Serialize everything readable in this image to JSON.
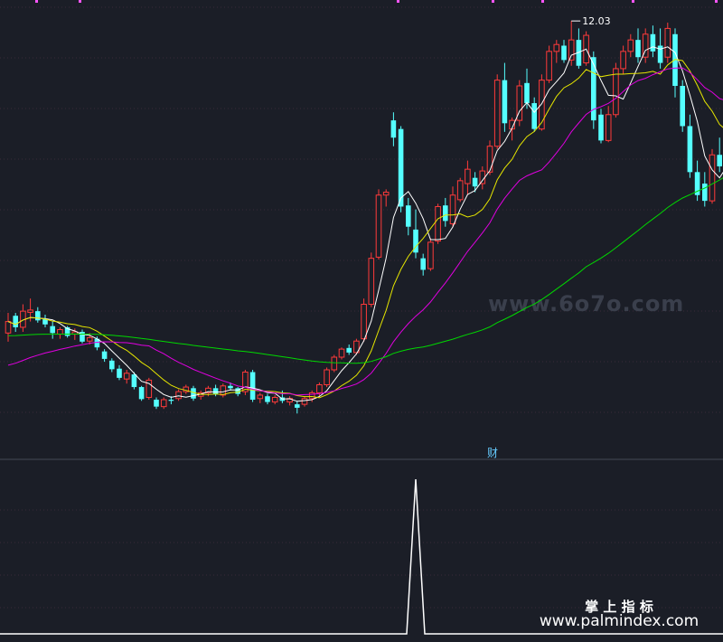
{
  "chart_data": [
    {
      "type": "candlestick",
      "panel": "price",
      "max_label": "12.03",
      "grid": true,
      "candles": [
        [
          6.6,
          6.95,
          6.45,
          6.8
        ],
        [
          6.9,
          6.95,
          6.62,
          6.7
        ],
        [
          6.7,
          7.1,
          6.62,
          6.98
        ],
        [
          6.96,
          7.2,
          6.8,
          7.0
        ],
        [
          6.98,
          7.05,
          6.78,
          6.82
        ],
        [
          6.84,
          6.92,
          6.7,
          6.75
        ],
        [
          6.72,
          6.8,
          6.5,
          6.6
        ],
        [
          6.58,
          6.7,
          6.5,
          6.66
        ],
        [
          6.7,
          6.72,
          6.52,
          6.55
        ],
        [
          6.58,
          6.68,
          6.48,
          6.62
        ],
        [
          6.62,
          6.66,
          6.42,
          6.45
        ],
        [
          6.46,
          6.6,
          6.4,
          6.52
        ],
        [
          6.5,
          6.54,
          6.3,
          6.35
        ],
        [
          6.28,
          6.32,
          6.1,
          6.15
        ],
        [
          6.12,
          6.16,
          5.92,
          5.97
        ],
        [
          5.98,
          6.04,
          5.78,
          5.82
        ],
        [
          5.8,
          5.96,
          5.72,
          5.9
        ],
        [
          5.88,
          5.92,
          5.62,
          5.66
        ],
        [
          5.66,
          5.68,
          5.42,
          5.45
        ],
        [
          5.48,
          5.82,
          5.44,
          5.78
        ],
        [
          5.44,
          5.48,
          5.28,
          5.32
        ],
        [
          5.32,
          5.48,
          5.28,
          5.44
        ],
        [
          5.44,
          5.5,
          5.36,
          5.42
        ],
        [
          5.46,
          5.62,
          5.42,
          5.58
        ],
        [
          5.58,
          5.7,
          5.54,
          5.66
        ],
        [
          5.64,
          5.68,
          5.42,
          5.46
        ],
        [
          5.5,
          5.6,
          5.44,
          5.56
        ],
        [
          5.56,
          5.68,
          5.5,
          5.64
        ],
        [
          5.64,
          5.7,
          5.5,
          5.54
        ],
        [
          5.52,
          5.72,
          5.48,
          5.68
        ],
        [
          5.68,
          5.74,
          5.6,
          5.64
        ],
        [
          5.64,
          5.66,
          5.5,
          5.54
        ],
        [
          5.58,
          5.96,
          5.52,
          5.92
        ],
        [
          5.92,
          5.96,
          5.4,
          5.44
        ],
        [
          5.46,
          5.56,
          5.38,
          5.52
        ],
        [
          5.5,
          5.54,
          5.36,
          5.4
        ],
        [
          5.4,
          5.52,
          5.36,
          5.48
        ],
        [
          5.48,
          5.6,
          5.38,
          5.42
        ],
        [
          5.4,
          5.5,
          5.34,
          5.46
        ],
        [
          5.36,
          5.42,
          5.2,
          5.3
        ],
        [
          5.36,
          5.5,
          5.32,
          5.46
        ],
        [
          5.46,
          5.6,
          5.4,
          5.56
        ],
        [
          5.56,
          5.74,
          5.5,
          5.7
        ],
        [
          5.7,
          6.0,
          5.66,
          5.96
        ],
        [
          5.96,
          6.22,
          5.92,
          6.18
        ],
        [
          6.18,
          6.35,
          6.14,
          6.32
        ],
        [
          6.34,
          6.4,
          6.22,
          6.26
        ],
        [
          6.26,
          6.5,
          6.22,
          6.46
        ],
        [
          6.5,
          7.2,
          6.45,
          7.1
        ],
        [
          7.1,
          8.0,
          7.05,
          7.9
        ],
        [
          7.92,
          9.1,
          7.88,
          9.0
        ],
        [
          9.0,
          9.1,
          8.8,
          9.05
        ],
        [
          10.3,
          10.44,
          9.85,
          10.0
        ],
        [
          10.15,
          10.2,
          8.7,
          8.8
        ],
        [
          8.82,
          8.95,
          8.3,
          8.45
        ],
        [
          8.4,
          8.75,
          7.9,
          8.0
        ],
        [
          7.9,
          7.98,
          7.6,
          7.7
        ],
        [
          7.72,
          8.25,
          7.68,
          8.18
        ],
        [
          8.2,
          8.85,
          8.15,
          8.8
        ],
        [
          8.82,
          8.95,
          8.45,
          8.55
        ],
        [
          8.5,
          9.15,
          8.45,
          9.0
        ],
        [
          8.92,
          9.3,
          8.88,
          9.25
        ],
        [
          9.2,
          9.6,
          9.0,
          9.45
        ],
        [
          9.3,
          9.4,
          9.05,
          9.15
        ],
        [
          9.2,
          9.5,
          9.1,
          9.42
        ],
        [
          9.4,
          9.95,
          9.35,
          9.85
        ],
        [
          9.85,
          11.1,
          9.8,
          11.0
        ],
        [
          11.0,
          11.3,
          10.1,
          10.25
        ],
        [
          10.15,
          10.35,
          9.95,
          10.3
        ],
        [
          10.3,
          11.0,
          10.2,
          10.9
        ],
        [
          10.95,
          11.2,
          10.5,
          10.6
        ],
        [
          10.6,
          10.7,
          10.1,
          10.15
        ],
        [
          10.15,
          11.1,
          10.12,
          11.0
        ],
        [
          11.0,
          11.6,
          10.95,
          11.5
        ],
        [
          11.5,
          11.7,
          11.3,
          11.62
        ],
        [
          11.6,
          11.7,
          11.3,
          11.35
        ],
        [
          11.35,
          12.03,
          11.25,
          11.7
        ],
        [
          11.7,
          11.9,
          11.2,
          11.25
        ],
        [
          11.3,
          11.85,
          11.25,
          11.78
        ],
        [
          11.4,
          11.5,
          10.15,
          10.3
        ],
        [
          10.4,
          10.5,
          9.9,
          9.95
        ],
        [
          9.95,
          10.55,
          9.92,
          10.4
        ],
        [
          10.4,
          11.3,
          10.35,
          11.2
        ],
        [
          11.2,
          11.6,
          11.1,
          11.5
        ],
        [
          11.5,
          11.8,
          11.4,
          11.7
        ],
        [
          11.7,
          11.9,
          11.3,
          11.4
        ],
        [
          11.4,
          11.9,
          11.3,
          11.8
        ],
        [
          11.8,
          11.95,
          11.4,
          11.5
        ],
        [
          11.6,
          11.9,
          11.2,
          11.3
        ],
        [
          11.4,
          12.0,
          11.3,
          11.9
        ],
        [
          11.8,
          11.9,
          10.7,
          10.9
        ],
        [
          10.9,
          11.0,
          10.1,
          10.2
        ],
        [
          10.2,
          10.4,
          9.3,
          9.4
        ],
        [
          9.4,
          9.6,
          8.9,
          9.0
        ],
        [
          9.2,
          9.4,
          8.8,
          8.9
        ],
        [
          8.9,
          9.8,
          8.85,
          9.7
        ],
        [
          9.7,
          10.0,
          9.4,
          9.5
        ],
        [
          9.5,
          10.5,
          9.3,
          10.4
        ],
        [
          10.4,
          11.0,
          10.3,
          10.9
        ],
        [
          10.9,
          11.4,
          10.8,
          11.3
        ],
        [
          11.3,
          12.0,
          11.2,
          11.9
        ],
        [
          11.8,
          11.9,
          10.8,
          10.9
        ],
        [
          10.9,
          11.0,
          10.5,
          10.6
        ],
        [
          10.4,
          10.6,
          10.4,
          10.5
        ],
        [
          10.5,
          10.7,
          9.75,
          9.9
        ],
        [
          9.4,
          9.8,
          8.9,
          9.6
        ],
        [
          9.6,
          9.7,
          9.3,
          9.5
        ]
      ],
      "moving_averages": [
        {
          "period": 5,
          "color": "#ffffff"
        },
        {
          "period": 10,
          "color": "#e6e600"
        },
        {
          "period": 20,
          "color": "#e000e0"
        },
        {
          "period": 60,
          "color": "#00d800"
        }
      ],
      "moving_average_start_values": {
        "60": 6.55,
        "20": 6.0
      },
      "candle_colors": {
        "up": "#ff3a3a",
        "down": "#55ffff"
      },
      "ylim": [
        5.0,
        12.3
      ]
    },
    {
      "type": "line",
      "panel": "indicator",
      "signal_label": "财",
      "signal_index": 55,
      "color": "#ffffff",
      "ylim": [
        0,
        1
      ]
    }
  ],
  "watermarks": {
    "center": "www.6o7o.com",
    "bottom_title": "掌 上 指 标",
    "bottom_url": "www.palmindex.com"
  },
  "colors": {
    "background": "#1b1e27",
    "grid": "#3a2a3a",
    "separator": "#444a55",
    "label": "#ffffff",
    "signal_label": "#66ccff"
  }
}
